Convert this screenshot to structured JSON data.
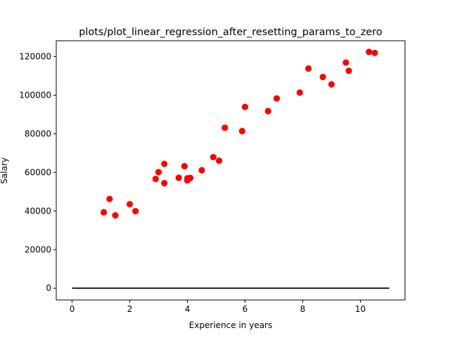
{
  "chart_data": {
    "type": "scatter",
    "title": "plots/plot_linear_regression_after_resetting_params_to_zero",
    "xlabel": "Experience in years",
    "ylabel": "Salary",
    "xlim": [
      -0.55,
      11.55
    ],
    "ylim": [
      -6100,
      128200
    ],
    "xticks": [
      0,
      2,
      4,
      6,
      8,
      10
    ],
    "yticks": [
      0,
      20000,
      40000,
      60000,
      80000,
      100000,
      120000
    ],
    "xtick_labels": [
      "0",
      "2",
      "4",
      "6",
      "8",
      "10"
    ],
    "ytick_labels": [
      "0",
      "20000",
      "40000",
      "60000",
      "80000",
      "100000",
      "120000"
    ],
    "grid": false,
    "series": [
      {
        "kind": "scatter",
        "color": "#ff0000",
        "points": [
          [
            1.1,
            39300
          ],
          [
            1.3,
            46200
          ],
          [
            1.5,
            37700
          ],
          [
            2.0,
            43500
          ],
          [
            2.2,
            39900
          ],
          [
            2.9,
            56600
          ],
          [
            3.0,
            60100
          ],
          [
            3.2,
            54400
          ],
          [
            3.2,
            64400
          ],
          [
            3.7,
            57200
          ],
          [
            3.9,
            63200
          ],
          [
            4.0,
            55800
          ],
          [
            4.0,
            56900
          ],
          [
            4.1,
            57100
          ],
          [
            4.5,
            61100
          ],
          [
            4.9,
            67900
          ],
          [
            5.1,
            66000
          ],
          [
            5.3,
            83100
          ],
          [
            5.9,
            81400
          ],
          [
            6.0,
            93900
          ],
          [
            6.8,
            91700
          ],
          [
            7.1,
            98300
          ],
          [
            7.9,
            101300
          ],
          [
            8.2,
            113800
          ],
          [
            8.7,
            109400
          ],
          [
            9.0,
            105600
          ],
          [
            9.5,
            116900
          ],
          [
            9.6,
            112600
          ],
          [
            10.3,
            122400
          ],
          [
            10.5,
            121900
          ]
        ]
      },
      {
        "kind": "line",
        "color": "#000000",
        "points": [
          [
            0,
            0
          ],
          [
            11,
            0
          ]
        ]
      }
    ]
  }
}
